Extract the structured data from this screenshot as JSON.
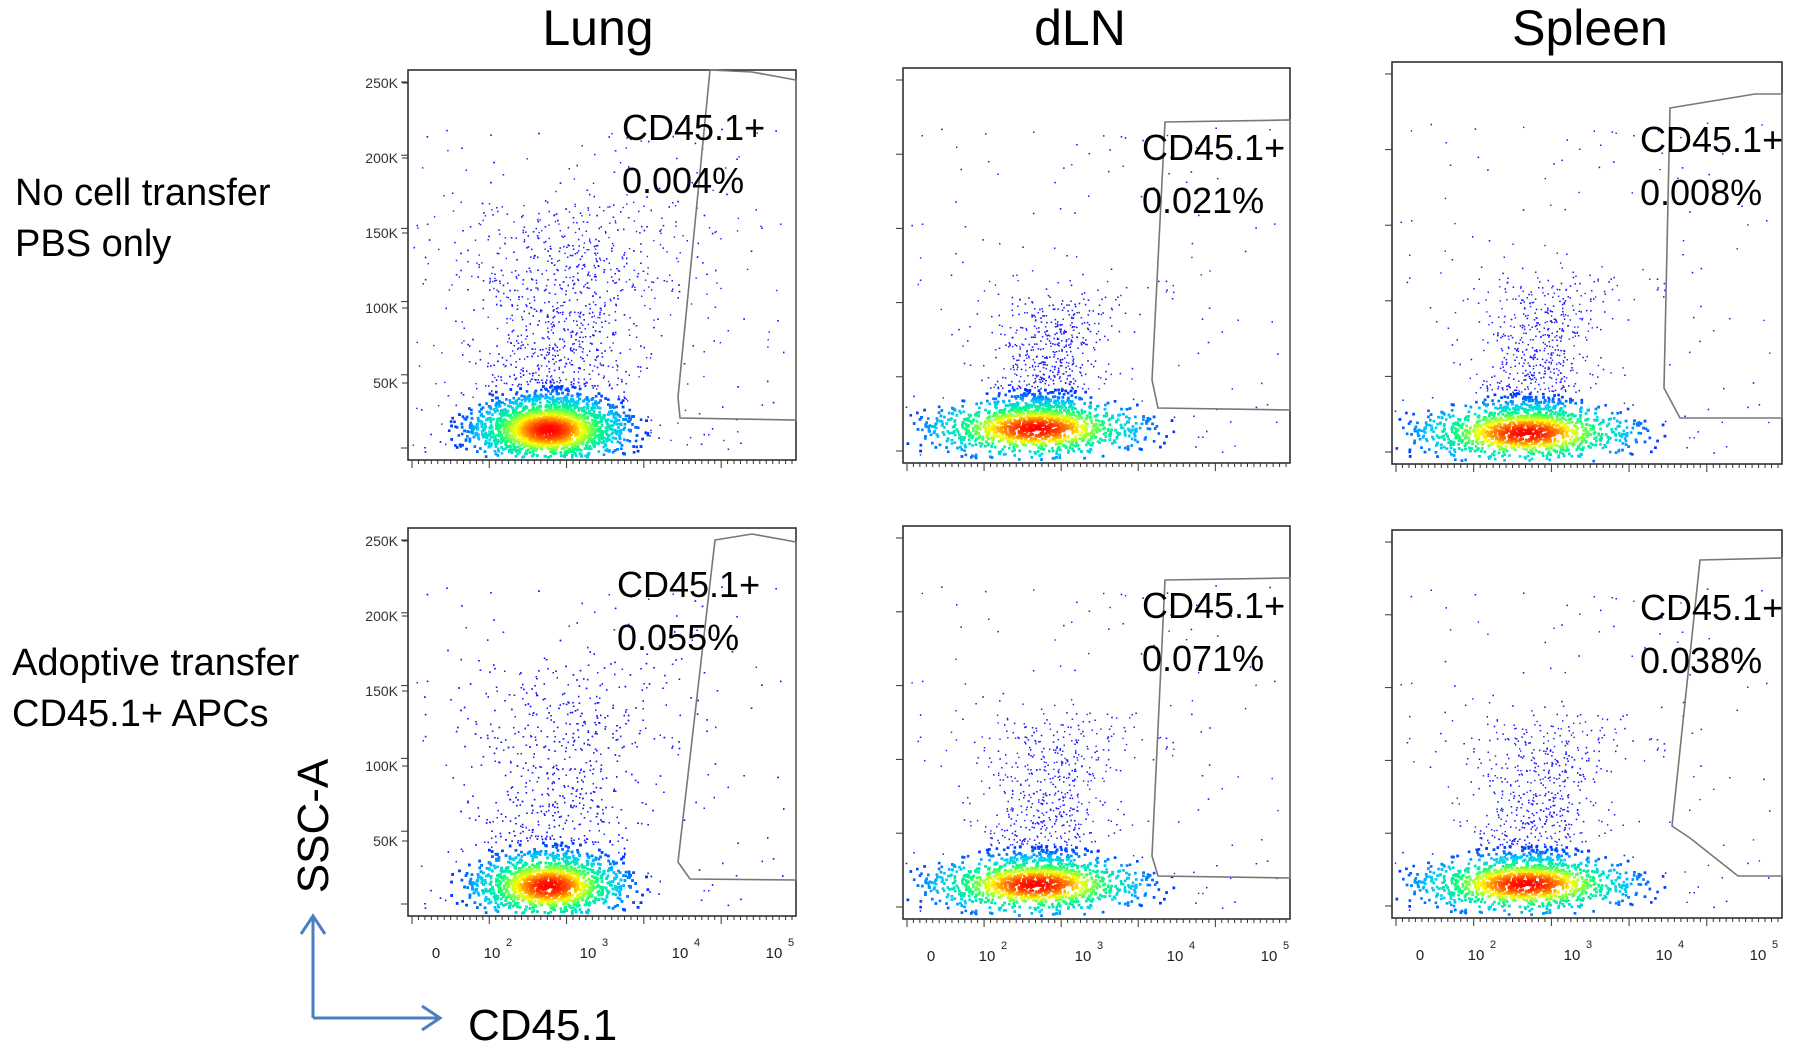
{
  "chart_data": [
    {
      "type": "scatter",
      "panel": "row1-col1",
      "title": "Lung",
      "xlabel": "",
      "ylabel": "",
      "yticks": [
        "250K",
        "200K",
        "150K",
        "100K",
        "50K"
      ],
      "xticks": [],
      "gate": {
        "label": "CD45.1+",
        "value": "0.004%"
      }
    },
    {
      "type": "scatter",
      "panel": "row1-col2",
      "title": "dLN",
      "xlabel": "",
      "ylabel": "",
      "yticks": [],
      "xticks": [],
      "gate": {
        "label": "CD45.1+",
        "value": "0.021%"
      }
    },
    {
      "type": "scatter",
      "panel": "row1-col3",
      "title": "Spleen",
      "xlabel": "",
      "ylabel": "",
      "yticks": [],
      "xticks": [],
      "gate": {
        "label": "CD45.1+",
        "value": "0.008%"
      }
    },
    {
      "type": "scatter",
      "panel": "row2-col1",
      "title": "Lung",
      "xlabel": "CD45.1",
      "ylabel": "SSC-A",
      "yticks": [
        "250K",
        "200K",
        "150K",
        "100K",
        "50K"
      ],
      "xticks": [
        "0",
        "10",
        "10",
        "10",
        "10"
      ],
      "xtick_sup": [
        "",
        "2",
        "3",
        "4",
        "5"
      ],
      "gate": {
        "label": "CD45.1+",
        "value": "0.055%"
      }
    },
    {
      "type": "scatter",
      "panel": "row2-col2",
      "title": "dLN",
      "xlabel": "CD45.1",
      "ylabel": "SSC-A",
      "yticks": [],
      "xticks": [
        "0",
        "10",
        "10",
        "10",
        "10"
      ],
      "xtick_sup": [
        "",
        "2",
        "3",
        "4",
        "5"
      ],
      "gate": {
        "label": "CD45.1+",
        "value": "0.071%"
      }
    },
    {
      "type": "scatter",
      "panel": "row2-col3",
      "title": "Spleen",
      "xlabel": "CD45.1",
      "ylabel": "SSC-A",
      "yticks": [],
      "xticks": [
        "0",
        "10",
        "10",
        "10",
        "10"
      ],
      "xtick_sup": [
        "",
        "2",
        "3",
        "4",
        "5"
      ],
      "gate": {
        "label": "CD45.1+",
        "value": "0.038%"
      }
    }
  ],
  "columns": [
    "Lung",
    "dLN",
    "Spleen"
  ],
  "rows": [
    {
      "line1": "No cell transfer",
      "line2": "PBS only"
    },
    {
      "line1": "Adoptive transfer",
      "line2": "CD45.1+ APCs"
    }
  ],
  "axes": {
    "y": "SSC-A",
    "x": "CD45.1"
  },
  "colors": {
    "dots": "#1a1aff",
    "gate": "#777777",
    "arrow": "#4a7fc0",
    "density": [
      "#0000ff",
      "#00c8ff",
      "#00ff80",
      "#ffff00",
      "#ff0000"
    ]
  }
}
